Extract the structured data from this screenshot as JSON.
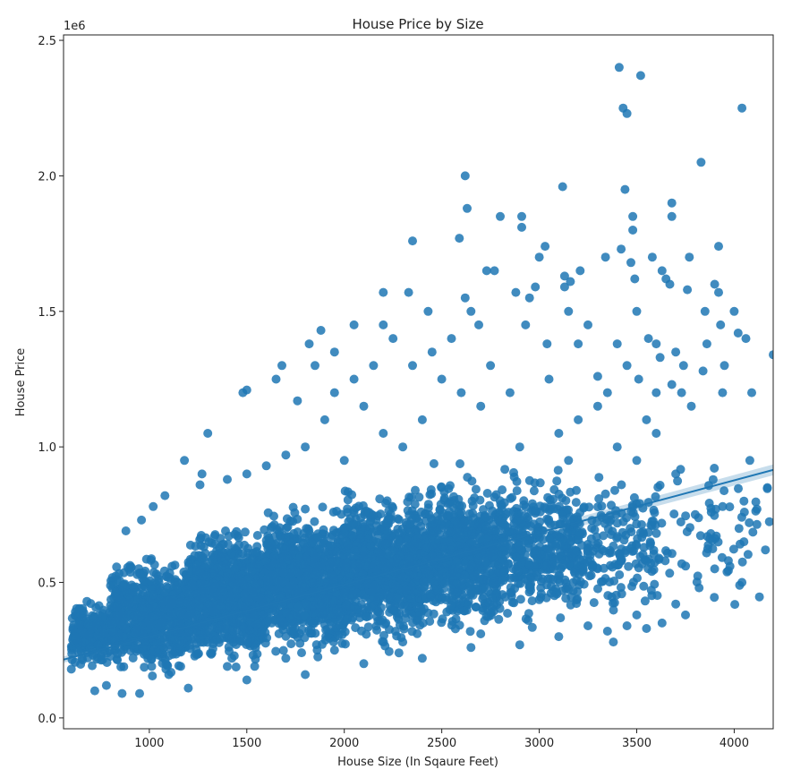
{
  "chart_data": {
    "type": "scatter",
    "title": "House Price by Size",
    "xlabel": "House Size (In Sqaure Feet)",
    "ylabel": "House Price",
    "y_offset_text": "1e6",
    "xlim": [
      560,
      4200
    ],
    "ylim": [
      -0.04,
      2.52
    ],
    "x_ticks": [
      1000,
      1500,
      2000,
      2500,
      3000,
      3500,
      4000
    ],
    "x_tick_labels": [
      "1000",
      "1500",
      "2000",
      "2500",
      "3000",
      "3500",
      "4000"
    ],
    "y_ticks": [
      0.0,
      0.5,
      1.0,
      1.5,
      2.0,
      2.5
    ],
    "y_tick_labels": [
      "0.0",
      "0.5",
      "1.0",
      "1.5",
      "2.0",
      "2.5"
    ],
    "grid": false,
    "point_color": "#1f77b4",
    "regression_line": {
      "x": [
        560,
        4200
      ],
      "y": [
        0.215,
        0.915
      ]
    },
    "series": [
      {
        "points": [
          [
            3410,
            2.4
          ],
          [
            3520,
            2.37
          ],
          [
            3430,
            2.25
          ],
          [
            3450,
            2.23
          ],
          [
            4040,
            2.25
          ],
          [
            3830,
            2.05
          ],
          [
            2620,
            2.0
          ],
          [
            3120,
            1.96
          ],
          [
            3440,
            1.95
          ],
          [
            3680,
            1.9
          ],
          [
            2630,
            1.88
          ],
          [
            2800,
            1.85
          ],
          [
            2910,
            1.85
          ],
          [
            2910,
            1.81
          ],
          [
            3480,
            1.85
          ],
          [
            3680,
            1.85
          ],
          [
            3480,
            1.8
          ],
          [
            2590,
            1.77
          ],
          [
            3030,
            1.74
          ],
          [
            3920,
            1.74
          ],
          [
            2350,
            1.76
          ],
          [
            3420,
            1.73
          ],
          [
            3000,
            1.7
          ],
          [
            3340,
            1.7
          ],
          [
            3580,
            1.7
          ],
          [
            3770,
            1.7
          ],
          [
            3470,
            1.68
          ],
          [
            2730,
            1.65
          ],
          [
            2770,
            1.65
          ],
          [
            3630,
            1.65
          ],
          [
            3210,
            1.65
          ],
          [
            3130,
            1.63
          ],
          [
            3490,
            1.62
          ],
          [
            3650,
            1.62
          ],
          [
            3160,
            1.61
          ],
          [
            3670,
            1.6
          ],
          [
            3900,
            1.6
          ],
          [
            3130,
            1.59
          ],
          [
            2980,
            1.59
          ],
          [
            2200,
            1.57
          ],
          [
            2330,
            1.57
          ],
          [
            2620,
            1.55
          ],
          [
            2880,
            1.57
          ],
          [
            3920,
            1.57
          ],
          [
            3760,
            1.58
          ],
          [
            3500,
            1.5
          ],
          [
            3850,
            1.5
          ],
          [
            4000,
            1.5
          ],
          [
            2430,
            1.5
          ],
          [
            3930,
            1.45
          ],
          [
            1880,
            1.43
          ],
          [
            2050,
            1.45
          ],
          [
            2200,
            1.45
          ],
          [
            2690,
            1.45
          ],
          [
            2930,
            1.45
          ],
          [
            3250,
            1.45
          ],
          [
            3560,
            1.4
          ],
          [
            3600,
            1.38
          ],
          [
            3860,
            1.38
          ],
          [
            4020,
            1.42
          ],
          [
            4060,
            1.4
          ],
          [
            4200,
            1.34
          ],
          [
            1820,
            1.38
          ],
          [
            3040,
            1.38
          ],
          [
            3200,
            1.38
          ],
          [
            3400,
            1.38
          ],
          [
            3700,
            1.35
          ],
          [
            3620,
            1.33
          ],
          [
            2450,
            1.35
          ],
          [
            1950,
            1.35
          ],
          [
            1680,
            1.3
          ],
          [
            3950,
            1.3
          ],
          [
            3740,
            1.3
          ],
          [
            3840,
            1.28
          ],
          [
            1480,
            1.2
          ],
          [
            1500,
            1.21
          ],
          [
            1650,
            1.25
          ],
          [
            1760,
            1.17
          ],
          [
            3940,
            1.2
          ],
          [
            4090,
            1.2
          ],
          [
            3730,
            1.2
          ],
          [
            3780,
            1.15
          ],
          [
            3680,
            1.23
          ],
          [
            3510,
            1.25
          ],
          [
            3300,
            1.26
          ],
          [
            1300,
            1.05
          ],
          [
            1270,
            0.9
          ],
          [
            1260,
            0.86
          ],
          [
            1180,
            0.95
          ],
          [
            1080,
            0.82
          ],
          [
            1020,
            0.78
          ],
          [
            960,
            0.73
          ],
          [
            880,
            0.69
          ],
          [
            4080,
            0.95
          ],
          [
            4050,
            0.8
          ],
          [
            4170,
            0.85
          ],
          [
            4160,
            0.62
          ],
          [
            4050,
            0.65
          ],
          [
            3970,
            0.58
          ],
          [
            4040,
            0.5
          ],
          [
            3880,
            0.68
          ],
          [
            3800,
            0.75
          ],
          [
            3900,
            0.55
          ],
          [
            3820,
            0.48
          ],
          [
            3700,
            0.42
          ],
          [
            3750,
            0.38
          ],
          [
            3630,
            0.35
          ],
          [
            3550,
            0.33
          ],
          [
            3500,
            0.38
          ],
          [
            3450,
            0.34
          ],
          [
            3380,
            0.28
          ],
          [
            3350,
            0.32
          ],
          [
            600,
            0.18
          ],
          [
            620,
            0.3
          ],
          [
            640,
            0.4
          ],
          [
            680,
            0.43
          ],
          [
            720,
            0.1
          ],
          [
            780,
            0.12
          ],
          [
            860,
            0.09
          ],
          [
            950,
            0.09
          ],
          [
            1200,
            0.11
          ],
          [
            1500,
            0.14
          ],
          [
            1800,
            0.16
          ],
          [
            2100,
            0.2
          ],
          [
            2400,
            0.22
          ],
          [
            2650,
            0.26
          ],
          [
            2900,
            0.27
          ],
          [
            3100,
            0.3
          ],
          [
            3250,
            0.34
          ],
          [
            2700,
            0.31
          ],
          [
            2300,
            0.28
          ],
          [
            1950,
            0.25
          ],
          [
            1700,
            0.22
          ],
          [
            1400,
            0.19
          ],
          [
            1100,
            0.16
          ],
          [
            3200,
            1.1
          ],
          [
            3100,
            1.05
          ],
          [
            2900,
            1.0
          ],
          [
            2700,
            1.15
          ],
          [
            2600,
            1.2
          ],
          [
            2500,
            1.25
          ],
          [
            2400,
            1.1
          ],
          [
            2300,
            1.0
          ],
          [
            2200,
            1.05
          ],
          [
            2100,
            1.15
          ],
          [
            2000,
            0.95
          ],
          [
            1900,
            1.1
          ],
          [
            1800,
            1.0
          ],
          [
            1700,
            0.97
          ],
          [
            1600,
            0.93
          ],
          [
            1500,
            0.9
          ],
          [
            1400,
            0.88
          ],
          [
            3300,
            1.15
          ],
          [
            3400,
            1.0
          ],
          [
            3500,
            0.95
          ],
          [
            3600,
            1.05
          ],
          [
            3700,
            0.9
          ],
          [
            3550,
            1.1
          ],
          [
            3150,
            0.95
          ],
          [
            2850,
            1.2
          ],
          [
            2750,
            1.3
          ],
          [
            2550,
            1.4
          ],
          [
            2350,
            1.3
          ],
          [
            2250,
            1.4
          ],
          [
            2150,
            1.3
          ],
          [
            2050,
            1.25
          ],
          [
            1950,
            1.2
          ],
          [
            1850,
            1.3
          ],
          [
            2650,
            1.5
          ],
          [
            2950,
            1.55
          ],
          [
            3050,
            1.25
          ],
          [
            3350,
            1.2
          ],
          [
            3450,
            1.3
          ],
          [
            3600,
            1.2
          ],
          [
            3150,
            1.5
          ]
        ]
      }
    ],
    "density_bands": [
      {
        "x_min": 600,
        "x_max": 800,
        "y_min": 0.17,
        "y_max": 0.45,
        "n": 220
      },
      {
        "x_min": 800,
        "x_max": 1200,
        "y_min": 0.12,
        "y_max": 0.62,
        "n": 700
      },
      {
        "x_min": 1200,
        "x_max": 1600,
        "y_min": 0.15,
        "y_max": 0.75,
        "n": 900
      },
      {
        "x_min": 1600,
        "x_max": 2000,
        "y_min": 0.18,
        "y_max": 0.82,
        "n": 900
      },
      {
        "x_min": 2000,
        "x_max": 2400,
        "y_min": 0.22,
        "y_max": 0.88,
        "n": 850
      },
      {
        "x_min": 2400,
        "x_max": 2800,
        "y_min": 0.26,
        "y_max": 0.95,
        "n": 700
      },
      {
        "x_min": 2800,
        "x_max": 3200,
        "y_min": 0.3,
        "y_max": 0.95,
        "n": 420
      },
      {
        "x_min": 3200,
        "x_max": 3600,
        "y_min": 0.32,
        "y_max": 0.95,
        "n": 180
      },
      {
        "x_min": 3600,
        "x_max": 4200,
        "y_min": 0.35,
        "y_max": 1.0,
        "n": 70
      }
    ]
  }
}
